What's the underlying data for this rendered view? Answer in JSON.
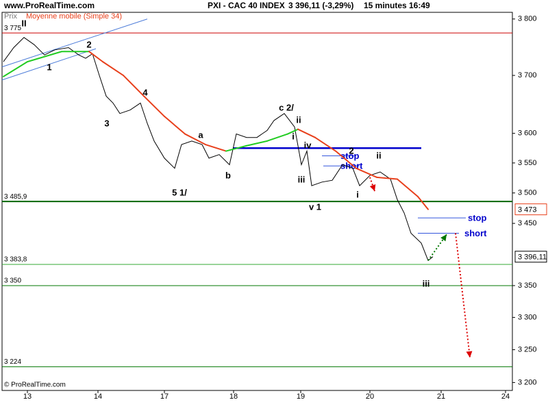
{
  "chart_data": {
    "type": "line",
    "site": "www.ProRealTime.com",
    "title": "PXI - CAC 40 INDEX",
    "quote": "3 396,11 (-3,29%)",
    "interval": "15 minutes",
    "time": "16:49",
    "copyright": "© ProRealTime.com",
    "ylog": true,
    "ylim": [
      3188,
      3812
    ],
    "yticks": [
      {
        "value": 3800,
        "label": "3 800"
      },
      {
        "value": 3700,
        "label": "3 700"
      },
      {
        "value": 3600,
        "label": "3 600"
      },
      {
        "value": 3550,
        "label": "3 550"
      },
      {
        "value": 3500,
        "label": "3 500"
      },
      {
        "value": 3450,
        "label": "3 450"
      },
      {
        "value": 3350,
        "label": "3 350"
      },
      {
        "value": 3300,
        "label": "3 300"
      },
      {
        "value": 3250,
        "label": "3 250"
      },
      {
        "value": 3200,
        "label": "3 200"
      }
    ],
    "xlim": [
      -0.37,
      7.08
    ],
    "xticks": [
      {
        "value": 0,
        "label": "13"
      },
      {
        "value": 1.03,
        "label": "14"
      },
      {
        "value": 2,
        "label": "17"
      },
      {
        "value": 3.01,
        "label": "18"
      },
      {
        "value": 3.99,
        "label": "19"
      },
      {
        "value": 5,
        "label": "20"
      },
      {
        "value": 6.04,
        "label": "21"
      },
      {
        "value": 6.98,
        "label": "24"
      }
    ],
    "series": [
      {
        "name": "Prix",
        "color": "#000000",
        "x": [
          -0.35,
          -0.2,
          -0.05,
          0.1,
          0.25,
          0.4,
          0.6,
          0.75,
          0.85,
          0.95,
          1.05,
          1.15,
          1.25,
          1.35,
          1.5,
          1.65,
          1.75,
          1.85,
          2.0,
          2.15,
          2.25,
          2.4,
          2.55,
          2.65,
          2.8,
          2.95,
          3.05,
          3.2,
          3.35,
          3.5,
          3.6,
          3.75,
          3.9,
          4.0,
          4.08,
          4.15,
          4.3,
          4.45,
          4.6,
          4.75,
          4.85,
          5.0,
          5.15,
          5.3,
          5.4,
          5.5,
          5.6,
          5.75,
          5.85,
          5.92
        ],
        "values": [
          3724,
          3749,
          3767,
          3754,
          3736,
          3745,
          3749,
          3736,
          3730,
          3738,
          3700,
          3664,
          3652,
          3634,
          3640,
          3652,
          3617,
          3587,
          3558,
          3541,
          3581,
          3587,
          3581,
          3558,
          3564,
          3547,
          3599,
          3593,
          3593,
          3605,
          3622,
          3634,
          3611,
          3547,
          3570,
          3512,
          3518,
          3521,
          3547,
          3541,
          3512,
          3529,
          3535,
          3523,
          3489,
          3467,
          3434,
          3418,
          3390,
          3396.11
        ]
      },
      {
        "name": "Moyenne mobile (Simple 34)",
        "color": "#e8401c",
        "rising_color": "#22cc22",
        "x": [
          -0.35,
          0,
          0.5,
          0.9,
          1.1,
          1.4,
          1.7,
          2.0,
          2.3,
          2.6,
          2.9,
          3.2,
          3.5,
          3.8,
          3.95,
          4.2,
          4.5,
          4.8,
          5.1,
          5.4,
          5.7,
          5.85
        ],
        "values": [
          3698,
          3724,
          3742,
          3742,
          3724,
          3700,
          3664,
          3629,
          3599,
          3581,
          3570,
          3579,
          3587,
          3599,
          3607,
          3593,
          3570,
          3541,
          3526,
          3523,
          3494,
          3473
        ]
      }
    ],
    "last_value": {
      "value": 3396.11,
      "label": "3 396,11"
    },
    "ma_last": {
      "value": 3473,
      "label": "3 473"
    },
    "levels": [
      {
        "value": 3775,
        "label": "3 775",
        "color": "#cc0000"
      },
      {
        "value": 3485.9,
        "label": "3 485,9",
        "color": "#006600"
      },
      {
        "value": 3383.8,
        "label": "3 383,8",
        "color": "#33aa33"
      },
      {
        "value": 3350,
        "label": "3 350",
        "color": "#007700"
      },
      {
        "value": 3224,
        "label": "3 224",
        "color": "#007700"
      }
    ],
    "support": {
      "value": 3575,
      "x": [
        3.0,
        5.75
      ],
      "color": "#0000cc"
    },
    "orders": [
      {
        "label": "stop",
        "value": 3562,
        "x": [
          4.3,
          4.8
        ]
      },
      {
        "label": "short",
        "value": 3545,
        "x": [
          4.32,
          4.85
        ]
      },
      {
        "label": "stop",
        "value": 3459,
        "x": [
          5.7,
          6.4
        ]
      },
      {
        "label": "short",
        "value": 3434,
        "x": [
          5.7,
          6.3
        ]
      }
    ],
    "trendlines": [
      {
        "x": [
          -0.37,
          1.75
        ],
        "values": [
          3715,
          3800
        ]
      },
      {
        "x": [
          -0.37,
          1.0
        ],
        "values": [
          3692,
          3747
        ]
      }
    ],
    "arrows": [
      {
        "color": "#dd0000",
        "x": [
          5.0,
          5.07
        ],
        "values": [
          3526,
          3503
        ]
      },
      {
        "color": "#dd0000",
        "x": [
          6.25,
          6.46
        ],
        "values": [
          3434,
          3238
        ]
      },
      {
        "color": "#007700",
        "x": [
          5.85,
          6.12
        ],
        "values": [
          3390,
          3432
        ]
      }
    ],
    "annotations": [
      "II",
      "1",
      "2",
      "3",
      "4",
      "5 1/",
      "a",
      "b",
      "c 2/",
      "ii",
      "i",
      "iv",
      "iii",
      "v 1",
      "2",
      "i",
      "ii",
      "iii"
    ]
  }
}
